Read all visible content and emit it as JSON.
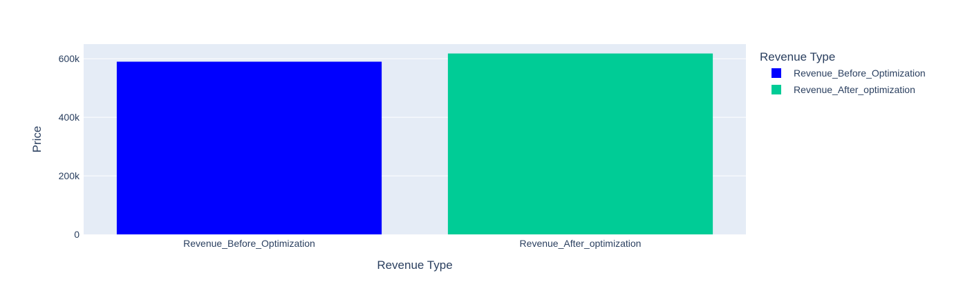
{
  "chart_data": {
    "type": "bar",
    "title": "",
    "xlabel": "Revenue Type",
    "ylabel": "Price",
    "categories": [
      "Revenue_Before_Optimization",
      "Revenue_After_optimization"
    ],
    "series": [
      {
        "name": "Revenue_Before_Optimization",
        "values": [
          590000,
          null
        ],
        "color": "#0000ff"
      },
      {
        "name": "Revenue_After_optimization",
        "values": [
          null,
          618000
        ],
        "color": "#00cc96"
      }
    ],
    "ylim": [
      0,
      650000
    ],
    "yticks": [
      0,
      200000,
      400000,
      600000
    ],
    "ytick_labels": [
      "0",
      "200k",
      "400k",
      "600k"
    ],
    "grid": true,
    "legend": {
      "title": "Revenue Type",
      "placement": "top-right",
      "items": [
        "Revenue_Before_Optimization",
        "Revenue_After_optimization"
      ]
    },
    "colors": {
      "plot_background": "#e5ecf6",
      "gridline": "#ffffff",
      "text": "#2a3f5f"
    }
  }
}
